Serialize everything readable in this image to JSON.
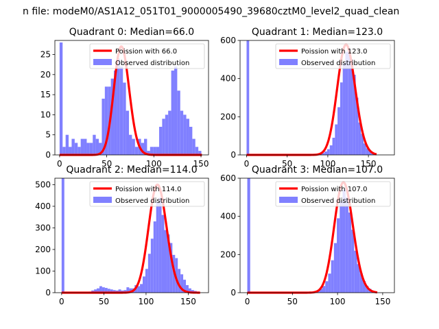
{
  "suptitle": "n file: modeM0/AS1A12_051T01_9000005490_39680cztM0_level2_quad_clean",
  "chart_data": [
    {
      "type": "bar",
      "title": "Quadrant 0: Median=66.0",
      "xlim": [
        -5,
        158
      ],
      "ylim": [
        0,
        28.5
      ],
      "xticks": [
        0,
        50,
        100,
        150
      ],
      "yticks": [
        0,
        5,
        10,
        15,
        20,
        25
      ],
      "bin_width": 3.2,
      "bar_color": "#8080ff",
      "bar_label": "Observed distribution",
      "line_color": "#ff0000",
      "line_label": "Poission with 66.0",
      "poisson_mean": 66.0,
      "poisson_peak": 27,
      "legend_position": "top-right",
      "bins": [
        {
          "x": 0,
          "count": 28
        },
        {
          "x": 3.2,
          "count": 2
        },
        {
          "x": 6.4,
          "count": 5
        },
        {
          "x": 9.6,
          "count": 2
        },
        {
          "x": 12.8,
          "count": 4
        },
        {
          "x": 16,
          "count": 3
        },
        {
          "x": 19.2,
          "count": 2
        },
        {
          "x": 22.4,
          "count": 4
        },
        {
          "x": 25.6,
          "count": 4
        },
        {
          "x": 28.8,
          "count": 3
        },
        {
          "x": 32,
          "count": 3
        },
        {
          "x": 35.2,
          "count": 5
        },
        {
          "x": 38.4,
          "count": 4
        },
        {
          "x": 41.6,
          "count": 3
        },
        {
          "x": 44.8,
          "count": 14
        },
        {
          "x": 48,
          "count": 17
        },
        {
          "x": 51.2,
          "count": 17
        },
        {
          "x": 54.4,
          "count": 19
        },
        {
          "x": 57.6,
          "count": 21
        },
        {
          "x": 60.8,
          "count": 24
        },
        {
          "x": 64,
          "count": 22
        },
        {
          "x": 67.2,
          "count": 18
        },
        {
          "x": 70.4,
          "count": 11
        },
        {
          "x": 73.6,
          "count": 5
        },
        {
          "x": 76.8,
          "count": 4
        },
        {
          "x": 80,
          "count": 2
        },
        {
          "x": 83.2,
          "count": 4
        },
        {
          "x": 86.4,
          "count": 3
        },
        {
          "x": 89.6,
          "count": 4
        },
        {
          "x": 92.8,
          "count": 1
        },
        {
          "x": 96,
          "count": 2
        },
        {
          "x": 99.2,
          "count": 2
        },
        {
          "x": 102.4,
          "count": 2
        },
        {
          "x": 105.6,
          "count": 7
        },
        {
          "x": 108.8,
          "count": 9
        },
        {
          "x": 112,
          "count": 10
        },
        {
          "x": 115.2,
          "count": 11
        },
        {
          "x": 118.4,
          "count": 21
        },
        {
          "x": 121.6,
          "count": 22
        },
        {
          "x": 124.8,
          "count": 16
        },
        {
          "x": 128,
          "count": 11
        },
        {
          "x": 131.2,
          "count": 10
        },
        {
          "x": 134.4,
          "count": 9
        },
        {
          "x": 137.6,
          "count": 7
        },
        {
          "x": 140.8,
          "count": 4
        },
        {
          "x": 144,
          "count": 2
        },
        {
          "x": 147.2,
          "count": 1
        }
      ]
    },
    {
      "type": "bar",
      "title": "Quadrant 1: Median=123.0",
      "xlim": [
        -8,
        182
      ],
      "ylim": [
        0,
        600
      ],
      "xticks": [
        0,
        50,
        100,
        150
      ],
      "yticks": [
        0,
        200,
        400,
        600
      ],
      "bin_width": 3.2,
      "bar_color": "#8080ff",
      "bar_label": "Observed distribution",
      "line_color": "#ff0000",
      "line_label": "Poission with 123.0",
      "poisson_mean": 123.0,
      "poisson_peak": 578,
      "legend_position": "top-right",
      "bins": [
        {
          "x": 0,
          "count": 600
        },
        {
          "x": 80,
          "count": 3
        },
        {
          "x": 86.4,
          "count": 5
        },
        {
          "x": 89.6,
          "count": 8
        },
        {
          "x": 92.8,
          "count": 10
        },
        {
          "x": 96,
          "count": 18
        },
        {
          "x": 99.2,
          "count": 30
        },
        {
          "x": 102.4,
          "count": 50
        },
        {
          "x": 105.6,
          "count": 90
        },
        {
          "x": 108.8,
          "count": 160
        },
        {
          "x": 112,
          "count": 250
        },
        {
          "x": 115.2,
          "count": 380
        },
        {
          "x": 118.4,
          "count": 480
        },
        {
          "x": 121.6,
          "count": 540
        },
        {
          "x": 124.8,
          "count": 555
        },
        {
          "x": 128,
          "count": 500
        },
        {
          "x": 131.2,
          "count": 420
        },
        {
          "x": 134.4,
          "count": 300
        },
        {
          "x": 137.6,
          "count": 170
        },
        {
          "x": 140.8,
          "count": 110
        },
        {
          "x": 144,
          "count": 60
        },
        {
          "x": 147.2,
          "count": 35
        },
        {
          "x": 150.4,
          "count": 20
        },
        {
          "x": 153.6,
          "count": 10
        },
        {
          "x": 156.8,
          "count": 5
        }
      ]
    },
    {
      "type": "bar",
      "title": "Quadrant 2: Median=114.0",
      "xlim": [
        -8,
        174
      ],
      "ylim": [
        0,
        530
      ],
      "xticks": [
        0,
        50,
        100,
        150
      ],
      "yticks": [
        0,
        100,
        200,
        300,
        400,
        500
      ],
      "bin_width": 3.2,
      "bar_color": "#8080ff",
      "bar_label": "Observed distribution",
      "line_color": "#ff0000",
      "line_label": "Poission with 114.0",
      "poisson_mean": 114.0,
      "poisson_peak": 500,
      "legend_position": "top-right",
      "bins": [
        {
          "x": 0,
          "count": 530
        },
        {
          "x": 32,
          "count": 5
        },
        {
          "x": 35.2,
          "count": 10
        },
        {
          "x": 38.4,
          "count": 15
        },
        {
          "x": 41.6,
          "count": 20
        },
        {
          "x": 44.8,
          "count": 30
        },
        {
          "x": 48,
          "count": 25
        },
        {
          "x": 51.2,
          "count": 22
        },
        {
          "x": 54.4,
          "count": 18
        },
        {
          "x": 57.6,
          "count": 15
        },
        {
          "x": 60.8,
          "count": 12
        },
        {
          "x": 64,
          "count": 10
        },
        {
          "x": 67.2,
          "count": 15
        },
        {
          "x": 70.4,
          "count": 10
        },
        {
          "x": 73.6,
          "count": 12
        },
        {
          "x": 76.8,
          "count": 25
        },
        {
          "x": 80,
          "count": 20
        },
        {
          "x": 83.2,
          "count": 20
        },
        {
          "x": 86.4,
          "count": 35
        },
        {
          "x": 89.6,
          "count": 30
        },
        {
          "x": 92.8,
          "count": 40
        },
        {
          "x": 96,
          "count": 75
        },
        {
          "x": 99.2,
          "count": 110
        },
        {
          "x": 102.4,
          "count": 180
        },
        {
          "x": 105.6,
          "count": 250
        },
        {
          "x": 108.8,
          "count": 330
        },
        {
          "x": 112,
          "count": 420
        },
        {
          "x": 115.2,
          "count": 440
        },
        {
          "x": 118.4,
          "count": 360
        },
        {
          "x": 121.6,
          "count": 290
        },
        {
          "x": 124.8,
          "count": 270
        },
        {
          "x": 128,
          "count": 230
        },
        {
          "x": 131.2,
          "count": 175
        },
        {
          "x": 134.4,
          "count": 160
        },
        {
          "x": 137.6,
          "count": 110
        },
        {
          "x": 140.8,
          "count": 85
        },
        {
          "x": 144,
          "count": 60
        },
        {
          "x": 147.2,
          "count": 35
        },
        {
          "x": 150.4,
          "count": 20
        },
        {
          "x": 153.6,
          "count": 12
        },
        {
          "x": 156.8,
          "count": 8
        },
        {
          "x": 160,
          "count": 5
        }
      ]
    },
    {
      "type": "bar",
      "title": "Quadrant 3: Median=107.0",
      "xlim": [
        -8,
        163
      ],
      "ylim": [
        0,
        600
      ],
      "xticks": [
        0,
        50,
        100,
        150
      ],
      "yticks": [
        0,
        200,
        400,
        600
      ],
      "bin_width": 3.2,
      "bar_color": "#8080ff",
      "bar_label": "Observed distribution",
      "line_color": "#ff0000",
      "line_label": "Poission with 107.0",
      "poisson_mean": 107.0,
      "poisson_peak": 578,
      "legend_position": "top-right",
      "bins": [
        {
          "x": 0,
          "count": 600
        },
        {
          "x": 64,
          "count": 3
        },
        {
          "x": 70.4,
          "count": 5
        },
        {
          "x": 73.6,
          "count": 8
        },
        {
          "x": 76.8,
          "count": 12
        },
        {
          "x": 80,
          "count": 20
        },
        {
          "x": 83.2,
          "count": 35
        },
        {
          "x": 86.4,
          "count": 60
        },
        {
          "x": 89.6,
          "count": 100
        },
        {
          "x": 92.8,
          "count": 170
        },
        {
          "x": 96,
          "count": 260
        },
        {
          "x": 99.2,
          "count": 390
        },
        {
          "x": 102.4,
          "count": 480
        },
        {
          "x": 105.6,
          "count": 540
        },
        {
          "x": 108.8,
          "count": 500
        },
        {
          "x": 112,
          "count": 420
        },
        {
          "x": 115.2,
          "count": 330
        },
        {
          "x": 118.4,
          "count": 220
        },
        {
          "x": 121.6,
          "count": 150
        },
        {
          "x": 124.8,
          "count": 100
        },
        {
          "x": 128,
          "count": 60
        },
        {
          "x": 131.2,
          "count": 35
        },
        {
          "x": 134.4,
          "count": 20
        },
        {
          "x": 137.6,
          "count": 10
        },
        {
          "x": 140.8,
          "count": 5
        }
      ]
    }
  ]
}
